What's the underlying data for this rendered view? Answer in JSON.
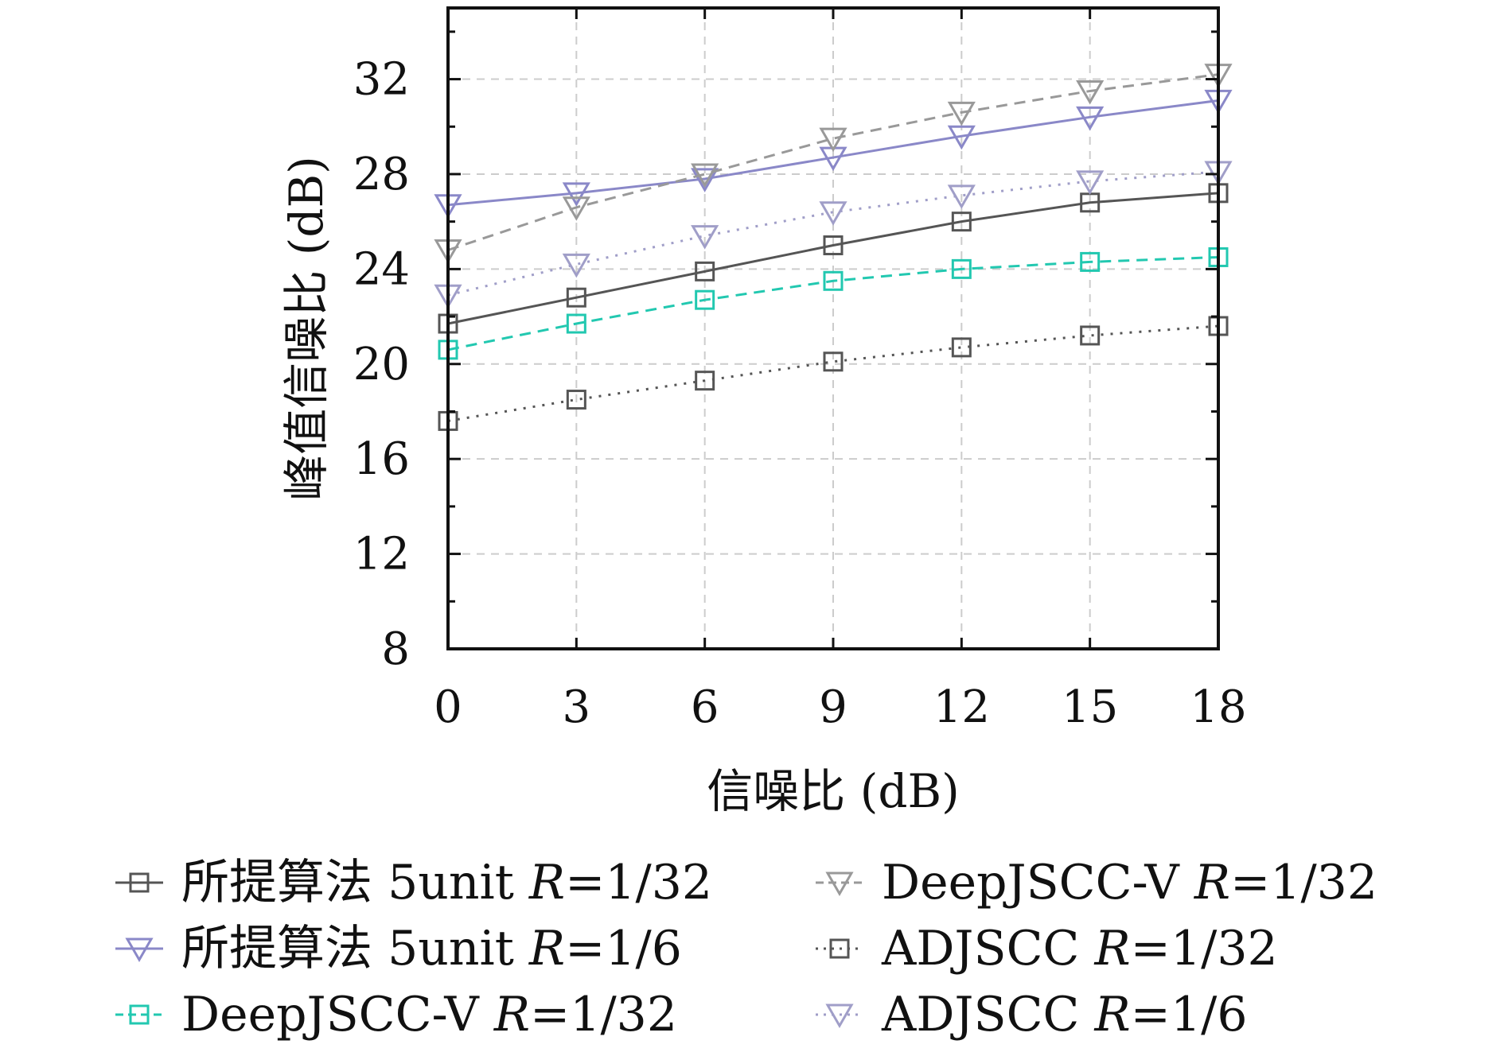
{
  "chart_data": {
    "type": "line",
    "xlabel": "信噪比 (dB)",
    "ylabel": "峰值信噪比 (dB)",
    "x": [
      0,
      3,
      6,
      9,
      12,
      15,
      18
    ],
    "xticks": [
      "0",
      "3",
      "6",
      "9",
      "12",
      "15",
      "18"
    ],
    "yticks": [
      "8",
      "12",
      "16",
      "20",
      "24",
      "28",
      "32"
    ],
    "xlim": [
      0,
      18
    ],
    "ylim": [
      8,
      35
    ],
    "grid": true,
    "legend_position": "bottom",
    "series": [
      {
        "name": "所提算法 5unit R=1/32",
        "values": [
          21.7,
          22.8,
          23.9,
          25.0,
          26.0,
          26.8,
          27.2
        ],
        "color": "#555555",
        "dash": "solid",
        "marker": "square"
      },
      {
        "name": "所提算法 5unit R=1/6",
        "values": [
          26.7,
          27.2,
          27.8,
          28.7,
          29.6,
          30.4,
          31.1
        ],
        "color": "#8a88c8",
        "dash": "solid",
        "marker": "triangle-down"
      },
      {
        "name": "DeepJSCC-V R=1/32",
        "values": [
          20.6,
          21.7,
          22.7,
          23.5,
          24.0,
          24.3,
          24.5
        ],
        "color": "#22c8b0",
        "dash": "dashed",
        "marker": "square"
      },
      {
        "name": "DeepJSCC-V R=1/32",
        "values": [
          24.8,
          26.6,
          28.0,
          29.5,
          30.6,
          31.5,
          32.2
        ],
        "color": "#999999",
        "dash": "dashed",
        "marker": "triangle-down"
      },
      {
        "name": "ADJSCC R=1/32",
        "values": [
          17.6,
          18.5,
          19.3,
          20.1,
          20.7,
          21.2,
          21.6
        ],
        "color": "#555555",
        "dash": "dotted",
        "marker": "square"
      },
      {
        "name": "ADJSCC R=1/6",
        "values": [
          22.9,
          24.2,
          25.4,
          26.4,
          27.1,
          27.7,
          28.1
        ],
        "color": "#a09ec8",
        "dash": "dotted",
        "marker": "triangle-down"
      }
    ],
    "legend": [
      {
        "prefix": "所提算法 5unit ",
        "var": "R",
        "suffix": "=1/32"
      },
      {
        "prefix": "所提算法 5unit ",
        "var": "R",
        "suffix": "=1/6"
      },
      {
        "prefix": "DeepJSCC-V ",
        "var": "R",
        "suffix": "=1/32"
      },
      {
        "prefix": "DeepJSCC-V ",
        "var": "R",
        "suffix": "=1/32"
      },
      {
        "prefix": "ADJSCC ",
        "var": "R",
        "suffix": "=1/32"
      },
      {
        "prefix": "ADJSCC ",
        "var": "R",
        "suffix": "=1/6"
      }
    ]
  }
}
